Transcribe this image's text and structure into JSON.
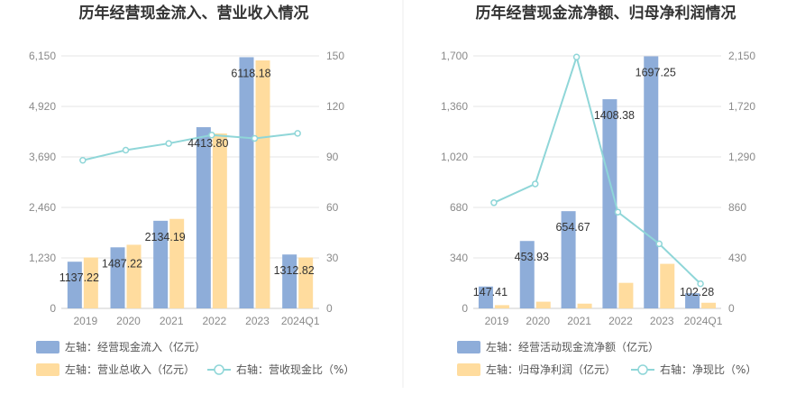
{
  "colors": {
    "bar1": "#8eadd9",
    "bar2": "#ffdc9e",
    "line": "#8fd6d8",
    "grid": "#e6e6e6",
    "divider": "#eeeeee"
  },
  "chart_data": [
    {
      "type": "bar",
      "title": "历年经营现金流入、营业收入情况",
      "categories": [
        "2019",
        "2020",
        "2021",
        "2022",
        "2023",
        "2024Q1"
      ],
      "left_axis": {
        "min": 0,
        "max": 6150,
        "ticks": [
          "0",
          "1,230",
          "2,460",
          "3,690",
          "4,920",
          "6,150"
        ]
      },
      "right_axis": {
        "min": 0,
        "max": 150,
        "ticks": [
          "0",
          "30",
          "60",
          "90",
          "120",
          "150"
        ]
      },
      "series": [
        {
          "name": "左轴：经营现金流入（亿元）",
          "axis": "left",
          "kind": "bar",
          "values": [
            1137.22,
            1487.22,
            2134.19,
            4413.8,
            6118.18,
            1312.82
          ],
          "labels": [
            "1137.22",
            "1487.22",
            "2134.19",
            "4413.80",
            "6118.18",
            "1312.82"
          ]
        },
        {
          "name": "左轴：营业总收入（亿元）",
          "axis": "left",
          "kind": "bar",
          "values": [
            1240,
            1550,
            2180,
            4260,
            6040,
            1240
          ]
        },
        {
          "name": "右轴：营收现金比（%）",
          "axis": "right",
          "kind": "line",
          "values": [
            88,
            94,
            98,
            103,
            101,
            104
          ]
        }
      ]
    },
    {
      "type": "bar",
      "title": "历年经营现金流净额、归母净利润情况",
      "categories": [
        "2019",
        "2020",
        "2021",
        "2022",
        "2023",
        "2024Q1"
      ],
      "left_axis": {
        "min": 0,
        "max": 1700,
        "ticks": [
          "0",
          "340",
          "680",
          "1,020",
          "1,360",
          "1,700"
        ]
      },
      "right_axis": {
        "min": 0,
        "max": 2150,
        "ticks": [
          "0",
          "430",
          "860",
          "1,290",
          "1,720",
          "2,150"
        ]
      },
      "series": [
        {
          "name": "左轴：经营活动现金流净额（亿元）",
          "axis": "left",
          "kind": "bar",
          "values": [
            147.41,
            453.93,
            654.67,
            1408.38,
            1697.25,
            102.28
          ],
          "labels": [
            "147.41",
            "453.93",
            "654.67",
            "1408.38",
            "1697.25",
            "102.28"
          ]
        },
        {
          "name": "左轴：归母净利润（亿元）",
          "axis": "left",
          "kind": "bar",
          "values": [
            22,
            45,
            32,
            172,
            300,
            38
          ]
        },
        {
          "name": "右轴：净现比（%）",
          "axis": "right",
          "kind": "line",
          "values": [
            900,
            1060,
            2140,
            820,
            550,
            210
          ]
        }
      ]
    }
  ]
}
